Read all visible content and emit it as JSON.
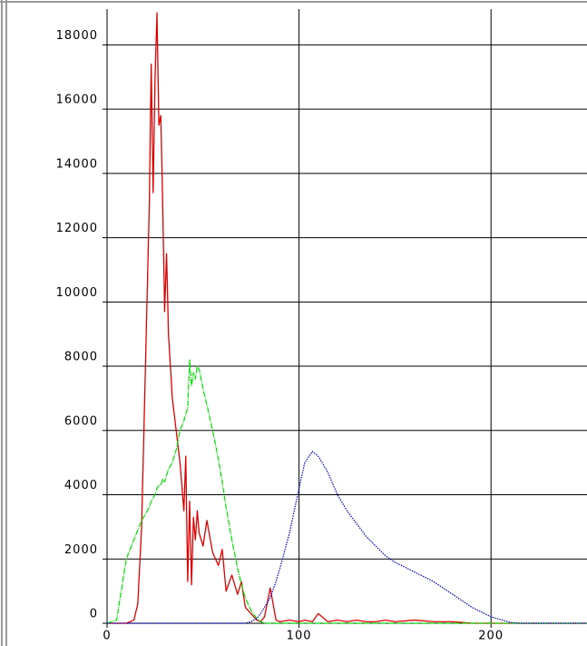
{
  "chart_data": {
    "type": "line",
    "x": [
      0,
      5,
      10,
      14,
      16,
      18,
      20,
      22,
      23,
      24,
      25,
      26,
      27,
      28,
      29,
      30,
      31,
      32,
      34,
      36,
      38,
      40,
      41,
      42,
      43,
      44,
      45,
      46,
      47,
      48,
      50,
      52,
      55,
      58,
      60,
      62,
      65,
      68,
      70,
      72,
      75,
      78,
      80,
      82,
      85,
      88,
      90,
      95,
      100,
      103,
      107,
      110,
      115,
      120,
      125,
      130,
      135,
      140,
      145,
      150,
      160,
      170,
      180,
      190,
      200,
      210,
      215,
      220,
      230,
      240,
      250
    ],
    "series": [
      {
        "color": "#e00000",
        "values": [
          0,
          0,
          0,
          100,
          600,
          3000,
          8000,
          13000,
          17400,
          13400,
          17000,
          19000,
          15500,
          15800,
          13000,
          9700,
          11500,
          9000,
          7000,
          6000,
          5000,
          3500,
          5200,
          1300,
          3800,
          1200,
          3300,
          2600,
          3500,
          2800,
          2400,
          3200,
          2200,
          1800,
          2300,
          1000,
          1500,
          900,
          1300,
          500,
          300,
          100,
          50,
          200,
          1100,
          100,
          50,
          100,
          50,
          100,
          50,
          300,
          50,
          100,
          50,
          100,
          50,
          50,
          100,
          50,
          100,
          50,
          50,
          0,
          0,
          0,
          0,
          0,
          0,
          0,
          0
        ]
      },
      {
        "color": "#00e000",
        "values": [
          0,
          100,
          2000,
          2600,
          2900,
          3200,
          3400,
          3600,
          3800,
          3900,
          4000,
          4200,
          4300,
          4300,
          4500,
          4400,
          4600,
          4800,
          5000,
          5400,
          6000,
          6300,
          6500,
          6700,
          8200,
          7400,
          7800,
          7600,
          8000,
          7900,
          7300,
          6800,
          6000,
          5100,
          4400,
          3600,
          2600,
          1700,
          1200,
          800,
          400,
          150,
          50,
          0,
          0,
          0,
          0,
          0,
          0,
          0,
          0,
          0,
          0,
          0,
          0,
          0,
          0,
          0,
          0,
          0,
          0,
          0,
          0,
          0,
          0,
          0,
          0,
          0,
          0,
          0,
          0
        ]
      },
      {
        "color": "#0000d0",
        "values": [
          0,
          0,
          0,
          0,
          0,
          0,
          0,
          0,
          0,
          0,
          0,
          0,
          0,
          0,
          0,
          0,
          0,
          0,
          0,
          0,
          0,
          0,
          0,
          0,
          0,
          0,
          0,
          0,
          0,
          0,
          0,
          0,
          0,
          0,
          0,
          0,
          0,
          0,
          0,
          0,
          50,
          150,
          300,
          500,
          800,
          1300,
          1700,
          2800,
          4200,
          5000,
          5350,
          5200,
          4700,
          4000,
          3500,
          3100,
          2700,
          2400,
          2100,
          1900,
          1600,
          1300,
          900,
          500,
          200,
          30,
          0,
          0,
          0,
          0,
          0
        ]
      }
    ],
    "xlim": [
      0,
      250
    ],
    "ylim": [
      0,
      19000
    ],
    "xticks": [
      0,
      100,
      200
    ],
    "yticks": [
      0,
      2000,
      4000,
      6000,
      8000,
      10000,
      12000,
      14000,
      16000,
      18000
    ],
    "grid": true
  }
}
